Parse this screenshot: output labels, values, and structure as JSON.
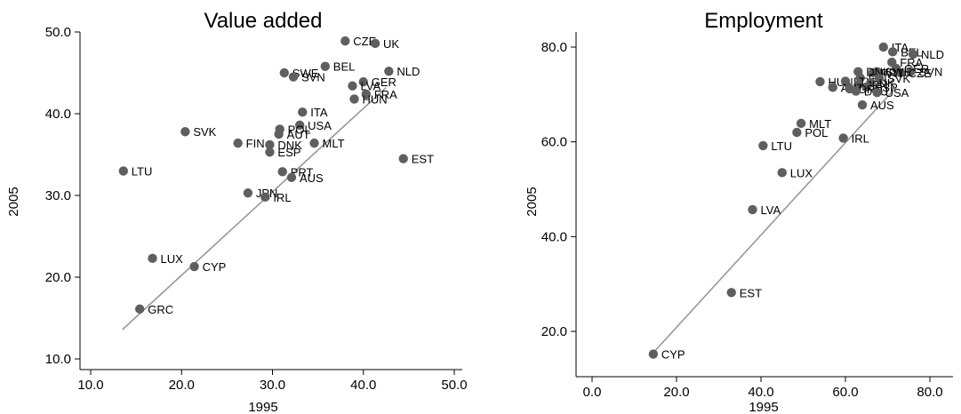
{
  "chart_data": [
    {
      "type": "scatter",
      "title": "Value added",
      "xlabel": "1995",
      "ylabel": "2005",
      "xlim": [
        10,
        50
      ],
      "ylim": [
        10,
        50
      ],
      "xticks": [
        "10.0",
        "20.0",
        "30.0",
        "40.0",
        "50.0"
      ],
      "yticks": [
        "10.0",
        "20.0",
        "30.0",
        "40.0",
        "50.0"
      ],
      "fit_line": [
        [
          13.5,
          13.6
        ],
        [
          42.5,
          43.2
        ]
      ],
      "points": [
        {
          "label": "CZE",
          "x": 38.0,
          "y": 48.9
        },
        {
          "label": "UK",
          "x": 41.3,
          "y": 48.6
        },
        {
          "label": "BEL",
          "x": 35.8,
          "y": 45.8
        },
        {
          "label": "SWE",
          "x": 31.3,
          "y": 45.0
        },
        {
          "label": "SVN",
          "x": 32.3,
          "y": 44.5
        },
        {
          "label": "NLD",
          "x": 42.8,
          "y": 45.2
        },
        {
          "label": "GER",
          "x": 40.0,
          "y": 43.9
        },
        {
          "label": "LVA",
          "x": 38.8,
          "y": 43.4
        },
        {
          "label": "FRA",
          "x": 40.3,
          "y": 42.4
        },
        {
          "label": "HUN",
          "x": 39.0,
          "y": 41.8
        },
        {
          "label": "ITA",
          "x": 33.3,
          "y": 40.2
        },
        {
          "label": "USA",
          "x": 33.0,
          "y": 38.6
        },
        {
          "label": "POL",
          "x": 30.8,
          "y": 38.1
        },
        {
          "label": "AUT",
          "x": 30.7,
          "y": 37.5
        },
        {
          "label": "SVK",
          "x": 20.4,
          "y": 37.8
        },
        {
          "label": "FIN",
          "x": 26.2,
          "y": 36.4
        },
        {
          "label": "DNK",
          "x": 29.7,
          "y": 36.2
        },
        {
          "label": "MLT",
          "x": 34.6,
          "y": 36.4
        },
        {
          "label": "ESP",
          "x": 29.7,
          "y": 35.3
        },
        {
          "label": "EST",
          "x": 44.4,
          "y": 34.5
        },
        {
          "label": "LTU",
          "x": 13.6,
          "y": 33.0
        },
        {
          "label": "PRT",
          "x": 31.1,
          "y": 32.9
        },
        {
          "label": "AUS",
          "x": 32.1,
          "y": 32.2
        },
        {
          "label": "JPN",
          "x": 27.3,
          "y": 30.3
        },
        {
          "label": "IRL",
          "x": 29.2,
          "y": 29.8
        },
        {
          "label": "LUX",
          "x": 16.8,
          "y": 22.3
        },
        {
          "label": "CYP",
          "x": 21.4,
          "y": 21.3
        },
        {
          "label": "GRC",
          "x": 15.4,
          "y": 16.1
        }
      ]
    },
    {
      "type": "scatter",
      "title": "Employment",
      "xlabel": "1995",
      "ylabel": "2005",
      "xlim": [
        0,
        80
      ],
      "ylim": [
        15,
        80
      ],
      "xticks": [
        "0.0",
        "20.0",
        "40.0",
        "60.0",
        "80.0"
      ],
      "yticks": [
        "20.0",
        "40.0",
        "60.0",
        "80.0"
      ],
      "fit_line": [
        [
          14.5,
          15.5
        ],
        [
          72.0,
          71.5
        ]
      ],
      "points": [
        {
          "label": "ITA",
          "x": 69.0,
          "y": 80.0
        },
        {
          "label": "BEL",
          "x": 71.2,
          "y": 79.0
        },
        {
          "label": "NLD",
          "x": 76.0,
          "y": 78.5
        },
        {
          "label": "FRA",
          "x": 71.0,
          "y": 76.8
        },
        {
          "label": "GER",
          "x": 72.0,
          "y": 75.5
        },
        {
          "label": "SVN",
          "x": 75.5,
          "y": 74.8
        },
        {
          "label": "CZE",
          "x": 73.0,
          "y": 74.6
        },
        {
          "label": "SWE",
          "x": 67.5,
          "y": 74.8
        },
        {
          "label": "PRT",
          "x": 66.5,
          "y": 74.6
        },
        {
          "label": "DNK",
          "x": 63.0,
          "y": 74.8
        },
        {
          "label": "FIN",
          "x": 63.5,
          "y": 73.5
        },
        {
          "label": "SVK",
          "x": 68.0,
          "y": 73.4
        },
        {
          "label": "HUN",
          "x": 54.0,
          "y": 72.7
        },
        {
          "label": "LTV",
          "x": 60.0,
          "y": 72.8
        },
        {
          "label": "UK",
          "x": 66.0,
          "y": 72.5
        },
        {
          "label": "JPN",
          "x": 63.0,
          "y": 72.0
        },
        {
          "label": "ESP",
          "x": 65.0,
          "y": 71.6
        },
        {
          "label": "AUT",
          "x": 57.0,
          "y": 71.5
        },
        {
          "label": "GRC",
          "x": 61.0,
          "y": 71.2
        },
        {
          "label": "DEU",
          "x": 62.5,
          "y": 70.7
        },
        {
          "label": "USA",
          "x": 67.5,
          "y": 70.4
        },
        {
          "label": "AUS",
          "x": 64.0,
          "y": 67.8
        },
        {
          "label": "MLT",
          "x": 49.5,
          "y": 63.9
        },
        {
          "label": "POL",
          "x": 48.5,
          "y": 62.0
        },
        {
          "label": "IRL",
          "x": 59.5,
          "y": 60.8
        },
        {
          "label": "LTU",
          "x": 40.5,
          "y": 59.2
        },
        {
          "label": "LUX",
          "x": 45.0,
          "y": 53.5
        },
        {
          "label": "LVA",
          "x": 38.0,
          "y": 45.7
        },
        {
          "label": "EST",
          "x": 33.0,
          "y": 28.2
        },
        {
          "label": "CYP",
          "x": 14.5,
          "y": 15.2
        }
      ]
    }
  ]
}
